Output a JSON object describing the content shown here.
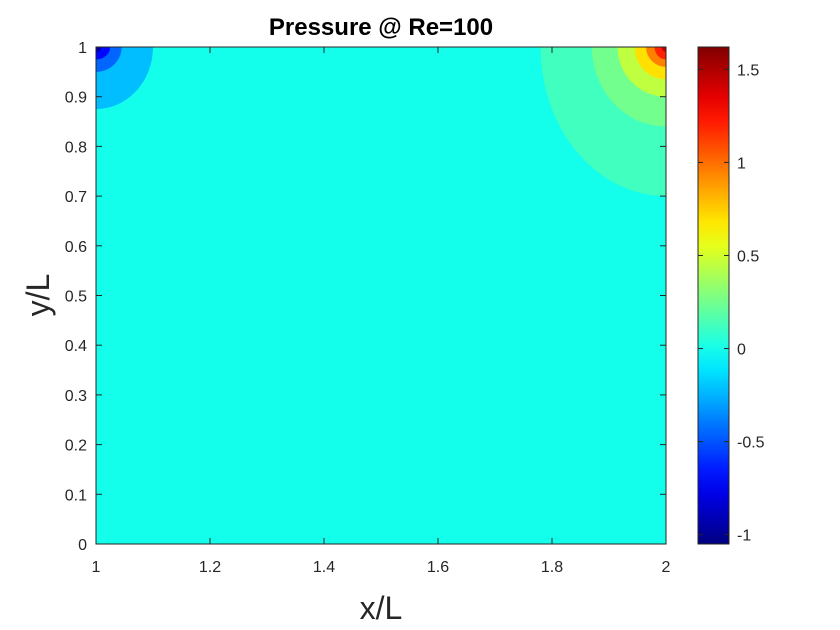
{
  "chart_data": {
    "type": "heatmap",
    "subtype": "filled-contour",
    "title": "Pressure @ Re=100",
    "xlabel": "x/L",
    "ylabel": "y/L",
    "xlim": [
      1,
      2
    ],
    "ylim": [
      0,
      1
    ],
    "xticks": [
      1,
      1.2,
      1.4,
      1.6,
      1.8,
      2
    ],
    "xtick_labels": [
      "1",
      "1.2",
      "1.4",
      "1.6",
      "1.8",
      "2"
    ],
    "yticks": [
      0,
      0.1,
      0.2,
      0.3,
      0.4,
      0.5,
      0.6,
      0.7,
      0.8,
      0.9,
      1
    ],
    "ytick_labels": [
      "0",
      "0.1",
      "0.2",
      "0.3",
      "0.4",
      "0.5",
      "0.6",
      "0.7",
      "0.8",
      "0.9",
      "1"
    ],
    "grid": false,
    "background_level": 0,
    "colormap": "jet",
    "colorbar": {
      "position": "right",
      "limits": [
        -1.05,
        1.62
      ],
      "ticks": [
        -1,
        -0.5,
        0,
        0.5,
        1,
        1.5
      ],
      "tick_labels": [
        "-1",
        "-0.5",
        "0",
        "0.5",
        "1",
        "1.5"
      ]
    },
    "features": [
      {
        "location": "top-left corner",
        "center": [
          1,
          1
        ],
        "levels": [
          {
            "value": -0.22,
            "x_extent": 0.1,
            "y_extent": 0.125
          },
          {
            "value": -0.45,
            "x_extent": 0.045,
            "y_extent": 0.05
          },
          {
            "value": -0.7,
            "x_extent": 0.025,
            "y_extent": 0.025
          },
          {
            "value": -0.95,
            "x_extent": 0.01,
            "y_extent": 0.01
          }
        ]
      },
      {
        "location": "top-right corner",
        "center": [
          2,
          1
        ],
        "levels": [
          {
            "value": 0.12,
            "x_extent": 0.22,
            "y_extent": 0.3
          },
          {
            "value": 0.25,
            "x_extent": 0.13,
            "y_extent": 0.16
          },
          {
            "value": 0.45,
            "x_extent": 0.085,
            "y_extent": 0.1
          },
          {
            "value": 0.7,
            "x_extent": 0.055,
            "y_extent": 0.065
          },
          {
            "value": 0.95,
            "x_extent": 0.035,
            "y_extent": 0.04
          },
          {
            "value": 1.2,
            "x_extent": 0.02,
            "y_extent": 0.025
          },
          {
            "value": 1.45,
            "x_extent": 0.008,
            "y_extent": 0.01
          }
        ]
      }
    ]
  }
}
